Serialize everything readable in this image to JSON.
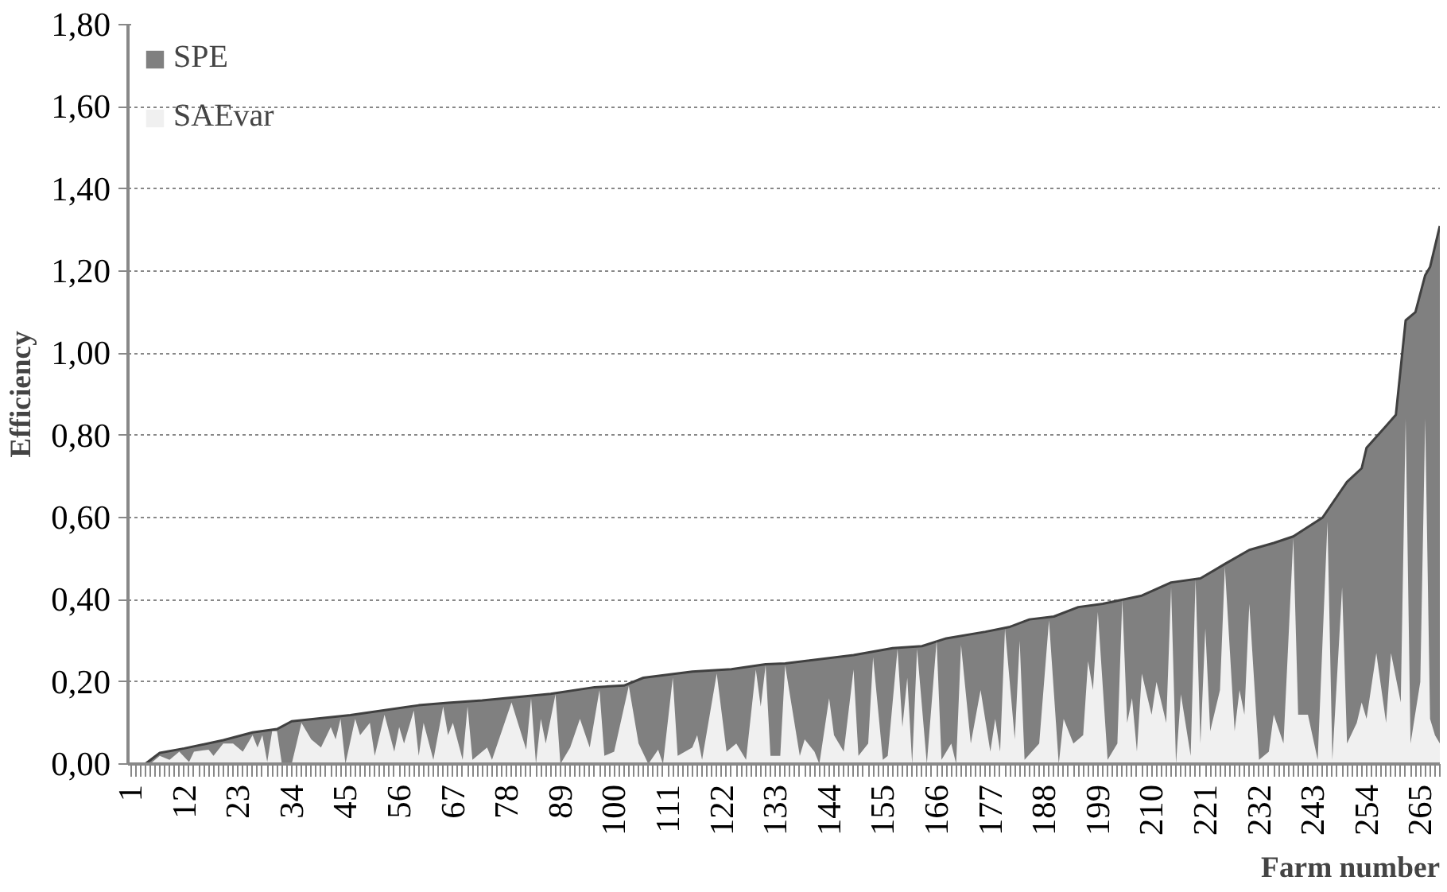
{
  "chart_data": {
    "type": "area",
    "xlabel": "Farm number",
    "ylabel": "Efficiency",
    "xlim": [
      0.5,
      269
    ],
    "xticks": [
      1,
      12,
      23,
      34,
      45,
      56,
      67,
      78,
      89,
      100,
      111,
      122,
      133,
      144,
      155,
      166,
      177,
      188,
      199,
      210,
      221,
      232,
      243,
      254,
      265
    ],
    "ylim": [
      0,
      1.8
    ],
    "yticks": [
      {
        "value": 0,
        "label": "0,00"
      },
      {
        "value": 0.2,
        "label": "0,20"
      },
      {
        "value": 0.4,
        "label": "0,40"
      },
      {
        "value": 0.6,
        "label": "0,60"
      },
      {
        "value": 0.8,
        "label": "0,80"
      },
      {
        "value": 1.0,
        "label": "1,00"
      },
      {
        "value": 1.2,
        "label": "1,20"
      },
      {
        "value": 1.4,
        "label": "1,40"
      },
      {
        "value": 1.6,
        "label": "1,60"
      },
      {
        "value": 1.8,
        "label": "1,80"
      }
    ],
    "grid": "y",
    "legend": "top left",
    "series": [
      {
        "name": "SPE",
        "color": "#808080",
        "x": [
          1,
          4,
          7,
          12,
          20,
          26,
          31,
          34,
          46,
          60,
          66,
          73,
          87,
          96,
          102,
          106,
          116,
          124,
          131,
          135,
          149,
          157,
          163,
          168,
          176,
          181,
          185,
          190,
          195,
          200,
          208,
          214,
          220,
          225,
          230,
          235,
          239,
          245,
          250,
          253,
          254,
          258,
          260,
          262,
          264,
          266,
          267,
          269
        ],
        "values": [
          0,
          0,
          0.027,
          0.038,
          0.058,
          0.077,
          0.085,
          0.104,
          0.119,
          0.143,
          0.149,
          0.155,
          0.171,
          0.187,
          0.191,
          0.21,
          0.225,
          0.231,
          0.243,
          0.245,
          0.265,
          0.282,
          0.287,
          0.306,
          0.322,
          0.334,
          0.352,
          0.359,
          0.382,
          0.39,
          0.41,
          0.442,
          0.452,
          0.487,
          0.521,
          0.538,
          0.554,
          0.6,
          0.687,
          0.72,
          0.77,
          0.823,
          0.85,
          1.08,
          1.1,
          1.19,
          1.21,
          1.31
        ]
      },
      {
        "name": "SAEvar",
        "color": "#f0f0f0",
        "x": [
          1,
          5,
          7,
          9,
          11,
          13,
          14,
          17,
          18,
          20,
          22,
          24,
          26,
          27,
          28,
          29,
          30,
          31,
          32,
          34,
          36,
          38,
          40,
          42,
          43,
          44,
          45,
          47,
          48,
          50,
          51,
          53,
          55,
          56,
          57,
          59,
          60,
          61,
          63,
          65,
          66,
          67,
          69,
          70,
          71,
          74,
          75,
          79,
          82,
          83,
          84,
          85,
          86,
          88,
          89,
          91,
          93,
          95,
          97,
          98,
          100,
          103,
          105,
          107,
          109,
          110,
          112,
          113,
          116,
          117,
          118,
          121,
          123,
          125,
          127,
          129,
          130,
          131,
          132,
          134,
          135,
          138,
          139,
          141,
          142,
          144,
          145,
          147,
          149,
          150,
          152,
          153,
          155,
          156,
          158,
          159,
          160,
          161,
          162,
          164,
          166,
          167,
          169,
          170,
          171,
          173,
          175,
          177,
          178,
          179,
          180,
          182,
          183,
          184,
          187,
          189,
          191,
          192,
          194,
          196,
          197,
          198,
          199,
          201,
          203,
          204,
          205,
          206,
          207,
          208,
          210,
          211,
          213,
          214,
          215,
          216,
          218,
          219,
          220,
          221,
          222,
          224,
          225,
          227,
          228,
          229,
          230,
          232,
          234,
          235,
          237,
          239,
          240,
          242,
          244,
          246,
          247,
          249,
          250,
          252,
          253,
          254,
          256,
          258,
          259,
          261,
          262,
          263,
          265,
          266,
          267,
          268,
          269
        ],
        "values": [
          0,
          0,
          0.02,
          0.01,
          0.03,
          0.005,
          0.03,
          0.035,
          0.02,
          0.05,
          0.05,
          0.03,
          0.07,
          0.04,
          0.07,
          0.005,
          0.08,
          0.08,
          0,
          0,
          0.1,
          0.06,
          0.04,
          0.09,
          0.06,
          0.11,
          0,
          0.11,
          0.07,
          0.1,
          0.02,
          0.12,
          0.03,
          0.09,
          0.05,
          0.13,
          0.02,
          0.1,
          0.01,
          0.14,
          0.07,
          0.1,
          0.01,
          0.14,
          0.01,
          0.04,
          0.01,
          0.15,
          0.035,
          0.16,
          0,
          0.11,
          0.05,
          0.17,
          0,
          0.04,
          0.11,
          0.04,
          0.18,
          0.02,
          0.03,
          0.19,
          0.05,
          0,
          0.035,
          0,
          0.21,
          0.02,
          0.04,
          0.07,
          0.01,
          0.22,
          0.03,
          0.05,
          0.01,
          0.23,
          0.14,
          0.24,
          0.02,
          0.02,
          0.24,
          0.02,
          0.06,
          0.03,
          0,
          0.16,
          0.07,
          0.03,
          0.23,
          0.02,
          0.05,
          0.26,
          0.01,
          0.02,
          0.28,
          0.09,
          0.21,
          0,
          0.28,
          0,
          0.3,
          0.01,
          0.05,
          0,
          0.29,
          0.05,
          0.18,
          0.03,
          0.11,
          0.03,
          0.33,
          0.06,
          0.3,
          0.01,
          0.05,
          0.35,
          0,
          0.11,
          0.05,
          0.07,
          0.25,
          0.18,
          0.37,
          0.01,
          0.05,
          0.4,
          0.1,
          0.16,
          0.03,
          0.22,
          0.12,
          0.2,
          0.1,
          0.43,
          0,
          0.17,
          0.02,
          0.45,
          0.05,
          0.33,
          0.08,
          0.18,
          0.48,
          0.08,
          0.18,
          0.12,
          0.39,
          0.01,
          0.03,
          0.12,
          0.05,
          0.55,
          0.12,
          0.12,
          0.01,
          0.59,
          0.01,
          0.43,
          0.05,
          0.1,
          0.15,
          0.11,
          0.27,
          0.1,
          0.27,
          0.15,
          0.84,
          0.05,
          0.2,
          0.84,
          0.11,
          0.07,
          0.05
        ]
      }
    ]
  }
}
